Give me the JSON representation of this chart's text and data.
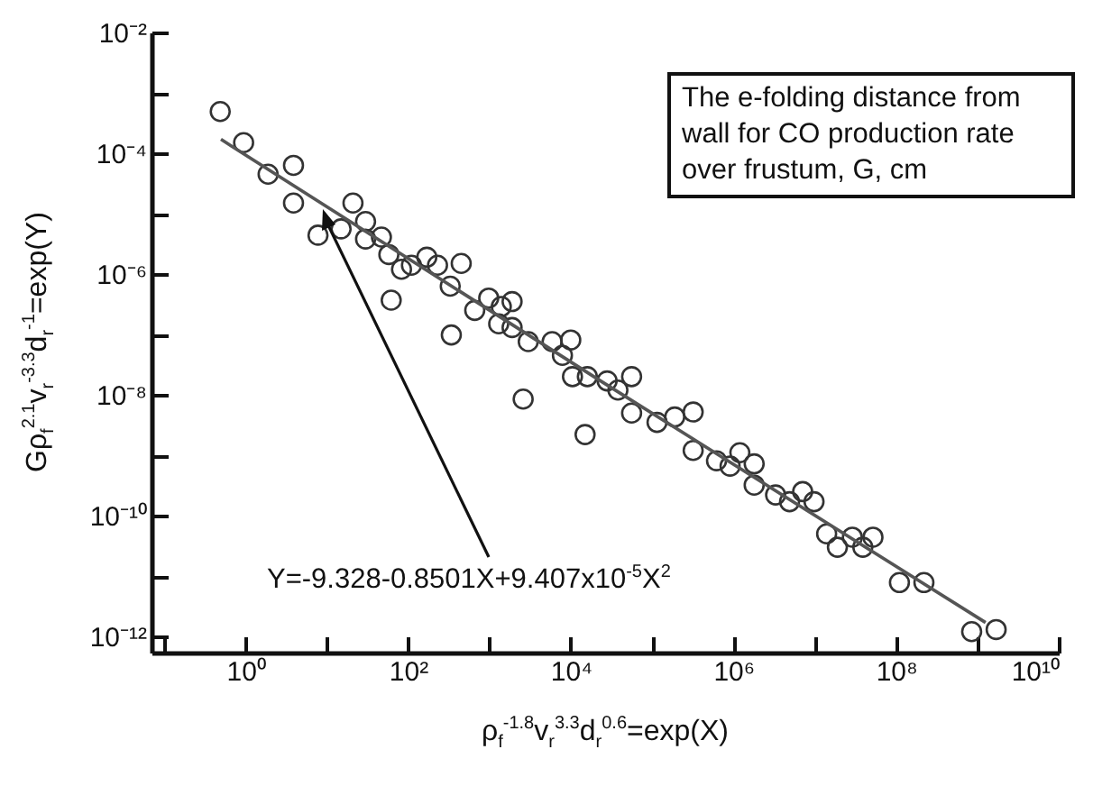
{
  "chart_data": {
    "type": "scatter",
    "xlabel": "ρ$_{f}$$^{-1.8}$v$_{r}$$^{3.3}$d$_{r}$$^{0.6}$=exp(X)",
    "ylabel": "Gρ$_{f}$$^{2.1}$v$_{r}$$^{-3.3}$d$_{r}$$^{-1}$=exp(Y)",
    "annotations": [
      "The e-folding distance from wall for CO production rate over frustum, G, cm",
      "Y=-9.328-0.8501X+9.407x10$^{-5}$X$^{2}$"
    ],
    "log": "xy",
    "grid": false,
    "xlim": [
      0.07,
      10000000000.0
    ],
    "ylim": [
      5.4e-13,
      0.01
    ],
    "xticks": [
      {
        "value": 0.1,
        "label": null
      },
      {
        "value": 1,
        "label": "10⁰"
      },
      {
        "value": 10,
        "label": null
      },
      {
        "value": 100,
        "label": "10²"
      },
      {
        "value": 1000,
        "label": null
      },
      {
        "value": 10000,
        "label": "10⁴"
      },
      {
        "value": 100000,
        "label": null
      },
      {
        "value": 1000000,
        "label": "10⁶"
      },
      {
        "value": 10000000,
        "label": null
      },
      {
        "value": 100000000,
        "label": "10⁸"
      },
      {
        "value": 1000000000,
        "label": null
      },
      {
        "value": 10000000000,
        "label": "10¹⁰"
      }
    ],
    "yticks": [
      {
        "value": 1e-12,
        "label": "10⁻¹²"
      },
      {
        "value": 1e-11,
        "label": null
      },
      {
        "value": 1e-10,
        "label": "10⁻¹⁰"
      },
      {
        "value": 1e-09,
        "label": null
      },
      {
        "value": 1e-08,
        "label": "10⁻⁸"
      },
      {
        "value": 1e-07,
        "label": null
      },
      {
        "value": 1e-06,
        "label": "10⁻⁶"
      },
      {
        "value": 1e-05,
        "label": null
      },
      {
        "value": 0.0001,
        "label": "10⁻⁴"
      },
      {
        "value": 0.001,
        "label": null
      },
      {
        "value": 0.01,
        "label": "10⁻²"
      }
    ],
    "series": [
      {
        "marker": "circle",
        "color": "#333333",
        "x": [
          0.49,
          0.95,
          1.9,
          3.9,
          3.9,
          7.8,
          15,
          21,
          30,
          30,
          47,
          58,
          62,
          83,
          110,
          170,
          230,
          330,
          450,
          340,
          660,
          980,
          1400,
          1900,
          1300,
          1900,
          3000,
          5900,
          7900,
          10000,
          10500,
          2600,
          16000,
          28000,
          38000,
          56000,
          15000,
          56000,
          115000,
          190000,
          320000,
          320000,
          620000,
          910000,
          1200000,
          1800000,
          1800000,
          3300000,
          4900000,
          7100000,
          9800000,
          14000000,
          19000000,
          29000000,
          39000000,
          52000000,
          110000000,
          220000000,
          850000000,
          1700000000
        ],
        "values": [
          0.00049,
          0.00015,
          4.5e-05,
          6.3e-05,
          1.5e-05,
          4.4e-06,
          5.6e-06,
          1.5e-05,
          7.4e-06,
          3.8e-06,
          4.1e-06,
          2.1e-06,
          3.7e-07,
          1.2e-06,
          1.4e-06,
          1.9e-06,
          1.4e-06,
          6.3e-07,
          1.5e-06,
          9.8e-08,
          2.5e-07,
          4e-07,
          2.9e-07,
          3.5e-07,
          1.5e-07,
          1.3e-07,
          7.6e-08,
          7.6e-08,
          4.5e-08,
          8.1e-08,
          2e-08,
          8.5e-09,
          2e-08,
          1.7e-08,
          1.2e-08,
          2e-08,
          2.2e-09,
          5e-09,
          3.5e-09,
          4.3e-09,
          5.2e-09,
          1.2e-09,
          8.1e-10,
          6.6e-10,
          1.1e-09,
          7.2e-10,
          3.2e-10,
          2.2e-10,
          1.7e-10,
          2.5e-10,
          1.7e-10,
          5e-11,
          3e-11,
          4.4e-11,
          3e-11,
          4.4e-11,
          7.8e-12,
          7.8e-12,
          1.2e-12,
          1.3e-12
        ]
      },
      {
        "type": "line",
        "color": "#555555",
        "x": [
          0.5,
          25000,
          1260000000
        ],
        "values": [
          0.00017,
          1.6e-08,
          1.7e-12
        ]
      }
    ]
  }
}
